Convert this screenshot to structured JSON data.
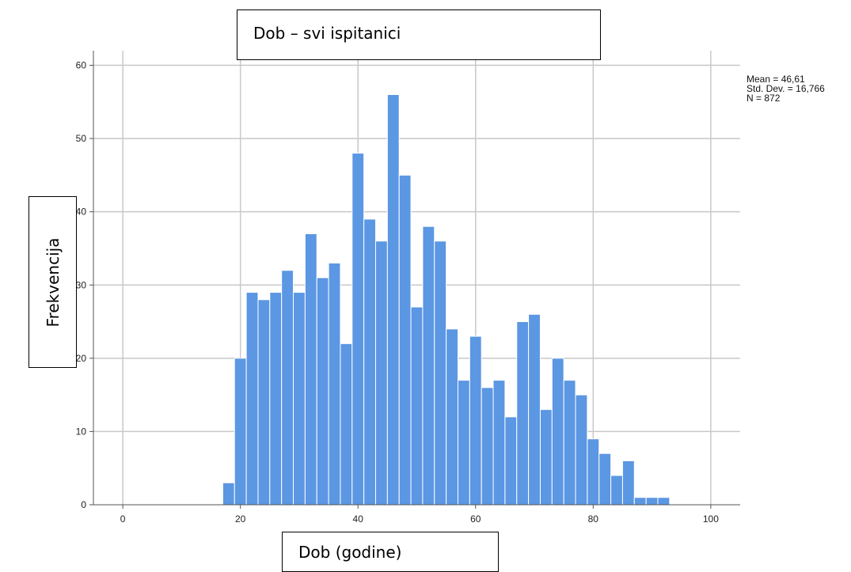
{
  "chart_data": {
    "type": "bar",
    "subtype": "histogram",
    "title": "Dob – svi ispitanici",
    "xlabel": "Dob (godine)",
    "ylabel": "Frekvencija",
    "xlim": [
      -5,
      105
    ],
    "ylim": [
      0,
      62
    ],
    "xticks": [
      0,
      20,
      40,
      60,
      80,
      100
    ],
    "yticks": [
      0,
      10,
      20,
      30,
      40,
      50,
      60
    ],
    "grid": true,
    "bar_color": "#5b97e3",
    "bin_width": 2,
    "bins_start": [
      17,
      19,
      21,
      23,
      25,
      27,
      29,
      31,
      33,
      35,
      37,
      39,
      41,
      43,
      45,
      47,
      49,
      51,
      53,
      55,
      57,
      59,
      61,
      63,
      65,
      67,
      69,
      71,
      73,
      75,
      77,
      79,
      81,
      83,
      85,
      87,
      89,
      91
    ],
    "values": [
      3,
      20,
      29,
      28,
      29,
      32,
      29,
      37,
      31,
      33,
      22,
      48,
      39,
      36,
      56,
      45,
      27,
      38,
      36,
      24,
      17,
      23,
      16,
      17,
      12,
      25,
      26,
      13,
      20,
      17,
      15,
      9,
      7,
      4,
      6,
      1,
      1,
      1
    ],
    "stats": [
      "Mean = 46,61",
      "Std. Dev. = 16,766",
      "N = 872"
    ]
  }
}
